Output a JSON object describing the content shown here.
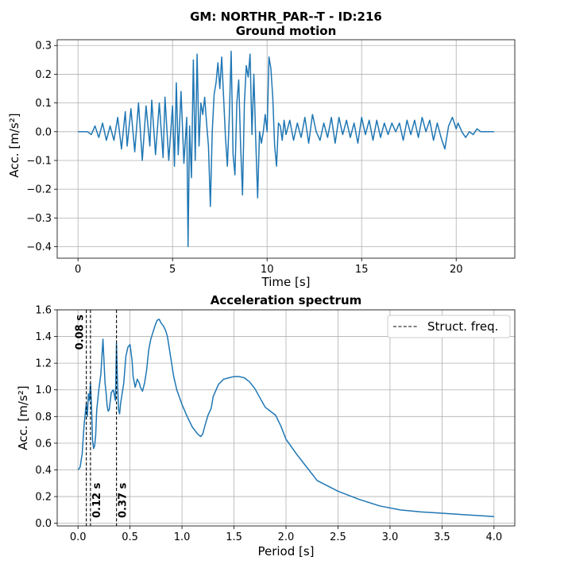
{
  "figure_title": "GM: NORTHR_PAR--T - ID:216",
  "chart_data": [
    {
      "type": "line",
      "title": "Ground motion",
      "xlabel": "Time [s]",
      "ylabel": "Acc. [m/s²]",
      "xlim": [
        -1.1,
        23.1
      ],
      "ylim": [
        -0.44,
        0.32
      ],
      "xticks": [
        0,
        5,
        10,
        15,
        20
      ],
      "yticks": [
        -0.4,
        -0.3,
        -0.2,
        -0.1,
        0.0,
        0.1,
        0.2,
        0.3
      ],
      "ytick_labels": [
        "−0.4",
        "−0.3",
        "−0.2",
        "−0.1",
        "0.0",
        "0.1",
        "0.2",
        "0.3"
      ],
      "grid": true,
      "series": [
        {
          "color": "#1f77b4",
          "x": [
            0,
            0.5,
            0.7,
            0.9,
            1.1,
            1.3,
            1.5,
            1.7,
            1.9,
            2.1,
            2.3,
            2.5,
            2.6,
            2.8,
            3.0,
            3.2,
            3.4,
            3.6,
            3.8,
            3.9,
            4.1,
            4.3,
            4.5,
            4.6,
            4.8,
            5.0,
            5.1,
            5.2,
            5.3,
            5.45,
            5.6,
            5.75,
            5.82,
            5.9,
            6.0,
            6.1,
            6.2,
            6.3,
            6.4,
            6.5,
            6.6,
            6.7,
            6.8,
            6.9,
            7.0,
            7.1,
            7.2,
            7.3,
            7.4,
            7.5,
            7.6,
            7.7,
            7.8,
            7.9,
            8.0,
            8.1,
            8.2,
            8.3,
            8.4,
            8.5,
            8.6,
            8.7,
            8.8,
            8.9,
            9.0,
            9.1,
            9.2,
            9.3,
            9.4,
            9.5,
            9.6,
            9.7,
            9.8,
            9.9,
            10.0,
            10.1,
            10.2,
            10.3,
            10.4,
            10.5,
            10.6,
            10.7,
            10.8,
            10.9,
            11.0,
            11.2,
            11.4,
            11.6,
            11.8,
            12.0,
            12.2,
            12.4,
            12.6,
            12.8,
            13.0,
            13.2,
            13.4,
            13.6,
            13.8,
            14.0,
            14.2,
            14.4,
            14.6,
            14.8,
            15.0,
            15.2,
            15.4,
            15.6,
            15.8,
            16.0,
            16.2,
            16.4,
            16.6,
            16.8,
            17.0,
            17.2,
            17.4,
            17.6,
            17.8,
            18.0,
            18.2,
            18.4,
            18.6,
            18.8,
            19.0,
            19.2,
            19.4,
            19.6,
            19.8,
            20.0,
            20.1,
            20.3,
            20.5,
            20.7,
            20.9,
            21.1,
            21.3,
            21.5,
            21.7,
            22.0
          ],
          "y": [
            0.0,
            0.0,
            -0.01,
            0.02,
            -0.02,
            0.03,
            -0.03,
            0.02,
            -0.03,
            0.05,
            -0.06,
            0.07,
            -0.05,
            0.08,
            -0.07,
            0.1,
            -0.1,
            0.09,
            -0.05,
            0.11,
            -0.08,
            0.1,
            -0.09,
            0.12,
            -0.1,
            0.09,
            -0.12,
            0.17,
            -0.08,
            0.14,
            -0.11,
            0.05,
            -0.4,
            0.02,
            -0.16,
            0.25,
            -0.1,
            0.27,
            -0.05,
            0.1,
            0.06,
            0.12,
            0.03,
            -0.05,
            -0.26,
            0.0,
            0.13,
            0.17,
            0.24,
            0.15,
            0.26,
            0.12,
            -0.02,
            -0.12,
            0.05,
            0.28,
            -0.08,
            -0.15,
            0.1,
            0.18,
            -0.05,
            -0.22,
            0.1,
            0.23,
            0.19,
            0.27,
            -0.01,
            0.2,
            -0.03,
            -0.23,
            0.0,
            -0.04,
            0.0,
            0.06,
            0.0,
            0.26,
            0.22,
            0.12,
            -0.05,
            -0.12,
            0.03,
            0.02,
            -0.03,
            0.04,
            -0.01,
            0.04,
            -0.03,
            0.03,
            -0.02,
            0.05,
            -0.04,
            0.06,
            0.0,
            -0.03,
            0.03,
            -0.02,
            0.05,
            -0.04,
            0.05,
            -0.01,
            0.04,
            -0.02,
            0.03,
            -0.04,
            0.05,
            -0.01,
            0.04,
            -0.03,
            0.04,
            -0.02,
            0.03,
            -0.01,
            0.03,
            0.0,
            0.03,
            -0.03,
            0.04,
            -0.01,
            0.04,
            -0.02,
            0.05,
            0.0,
            0.04,
            -0.03,
            0.03,
            -0.02,
            -0.06,
            0.02,
            0.05,
            0.01,
            0.03,
            0.0,
            -0.02,
            0.0,
            -0.01,
            0.01,
            0.0,
            0.0,
            0.0,
            0.0
          ]
        }
      ]
    },
    {
      "type": "line",
      "title": "Acceleration spectrum",
      "xlabel": "Period [s]",
      "ylabel": "Acc. [m/s²]",
      "xlim": [
        -0.2,
        4.2
      ],
      "ylim": [
        -0.02,
        1.6
      ],
      "xticks": [
        0.0,
        0.5,
        1.0,
        1.5,
        2.0,
        2.5,
        3.0,
        3.5,
        4.0
      ],
      "yticks": [
        0.0,
        0.2,
        0.4,
        0.6,
        0.8,
        1.0,
        1.2,
        1.4,
        1.6
      ],
      "grid": true,
      "legend": {
        "position": "top-right",
        "entries": [
          "Struct. freq."
        ]
      },
      "annotations": [
        {
          "x": 0.08,
          "label": "0.08 s",
          "label_position": "top"
        },
        {
          "x": 0.12,
          "label": "0.12 s",
          "label_position": "bottom"
        },
        {
          "x": 0.37,
          "label": "0.37 s",
          "label_position": "bottom"
        }
      ],
      "series": [
        {
          "color": "#1f77b4",
          "x": [
            0.0,
            0.02,
            0.04,
            0.06,
            0.08,
            0.09,
            0.1,
            0.11,
            0.12,
            0.13,
            0.14,
            0.15,
            0.16,
            0.17,
            0.18,
            0.2,
            0.22,
            0.24,
            0.26,
            0.27,
            0.28,
            0.29,
            0.3,
            0.32,
            0.34,
            0.36,
            0.37,
            0.38,
            0.39,
            0.4,
            0.41,
            0.42,
            0.44,
            0.46,
            0.48,
            0.5,
            0.52,
            0.53,
            0.55,
            0.57,
            0.59,
            0.6,
            0.62,
            0.64,
            0.66,
            0.68,
            0.7,
            0.72,
            0.74,
            0.76,
            0.78,
            0.8,
            0.82,
            0.84,
            0.86,
            0.88,
            0.9,
            0.92,
            0.95,
            1.0,
            1.05,
            1.1,
            1.15,
            1.18,
            1.2,
            1.22,
            1.25,
            1.28,
            1.3,
            1.35,
            1.4,
            1.45,
            1.5,
            1.55,
            1.6,
            1.65,
            1.7,
            1.75,
            1.8,
            1.85,
            1.9,
            1.95,
            2.0,
            2.1,
            2.2,
            2.3,
            2.5,
            2.7,
            2.9,
            3.1,
            3.3,
            3.5,
            3.7,
            3.9,
            4.0
          ],
          "y": [
            0.4,
            0.42,
            0.52,
            0.75,
            0.9,
            0.8,
            0.97,
            0.92,
            1.05,
            0.88,
            0.62,
            0.56,
            0.58,
            0.66,
            0.85,
            1.0,
            1.12,
            1.38,
            1.05,
            0.98,
            0.88,
            0.84,
            0.85,
            0.98,
            1.0,
            0.92,
            1.35,
            1.05,
            0.85,
            0.82,
            0.9,
            0.95,
            1.05,
            1.25,
            1.32,
            1.34,
            1.22,
            1.1,
            1.02,
            1.08,
            1.05,
            1.02,
            0.99,
            1.05,
            1.15,
            1.3,
            1.38,
            1.43,
            1.48,
            1.52,
            1.53,
            1.5,
            1.48,
            1.45,
            1.4,
            1.3,
            1.2,
            1.1,
            1.0,
            0.89,
            0.8,
            0.72,
            0.67,
            0.65,
            0.67,
            0.73,
            0.81,
            0.86,
            0.95,
            1.04,
            1.08,
            1.09,
            1.1,
            1.1,
            1.09,
            1.06,
            1.01,
            0.94,
            0.87,
            0.84,
            0.81,
            0.73,
            0.63,
            0.52,
            0.42,
            0.32,
            0.24,
            0.18,
            0.13,
            0.1,
            0.085,
            0.075,
            0.065,
            0.055,
            0.05
          ]
        }
      ]
    }
  ]
}
